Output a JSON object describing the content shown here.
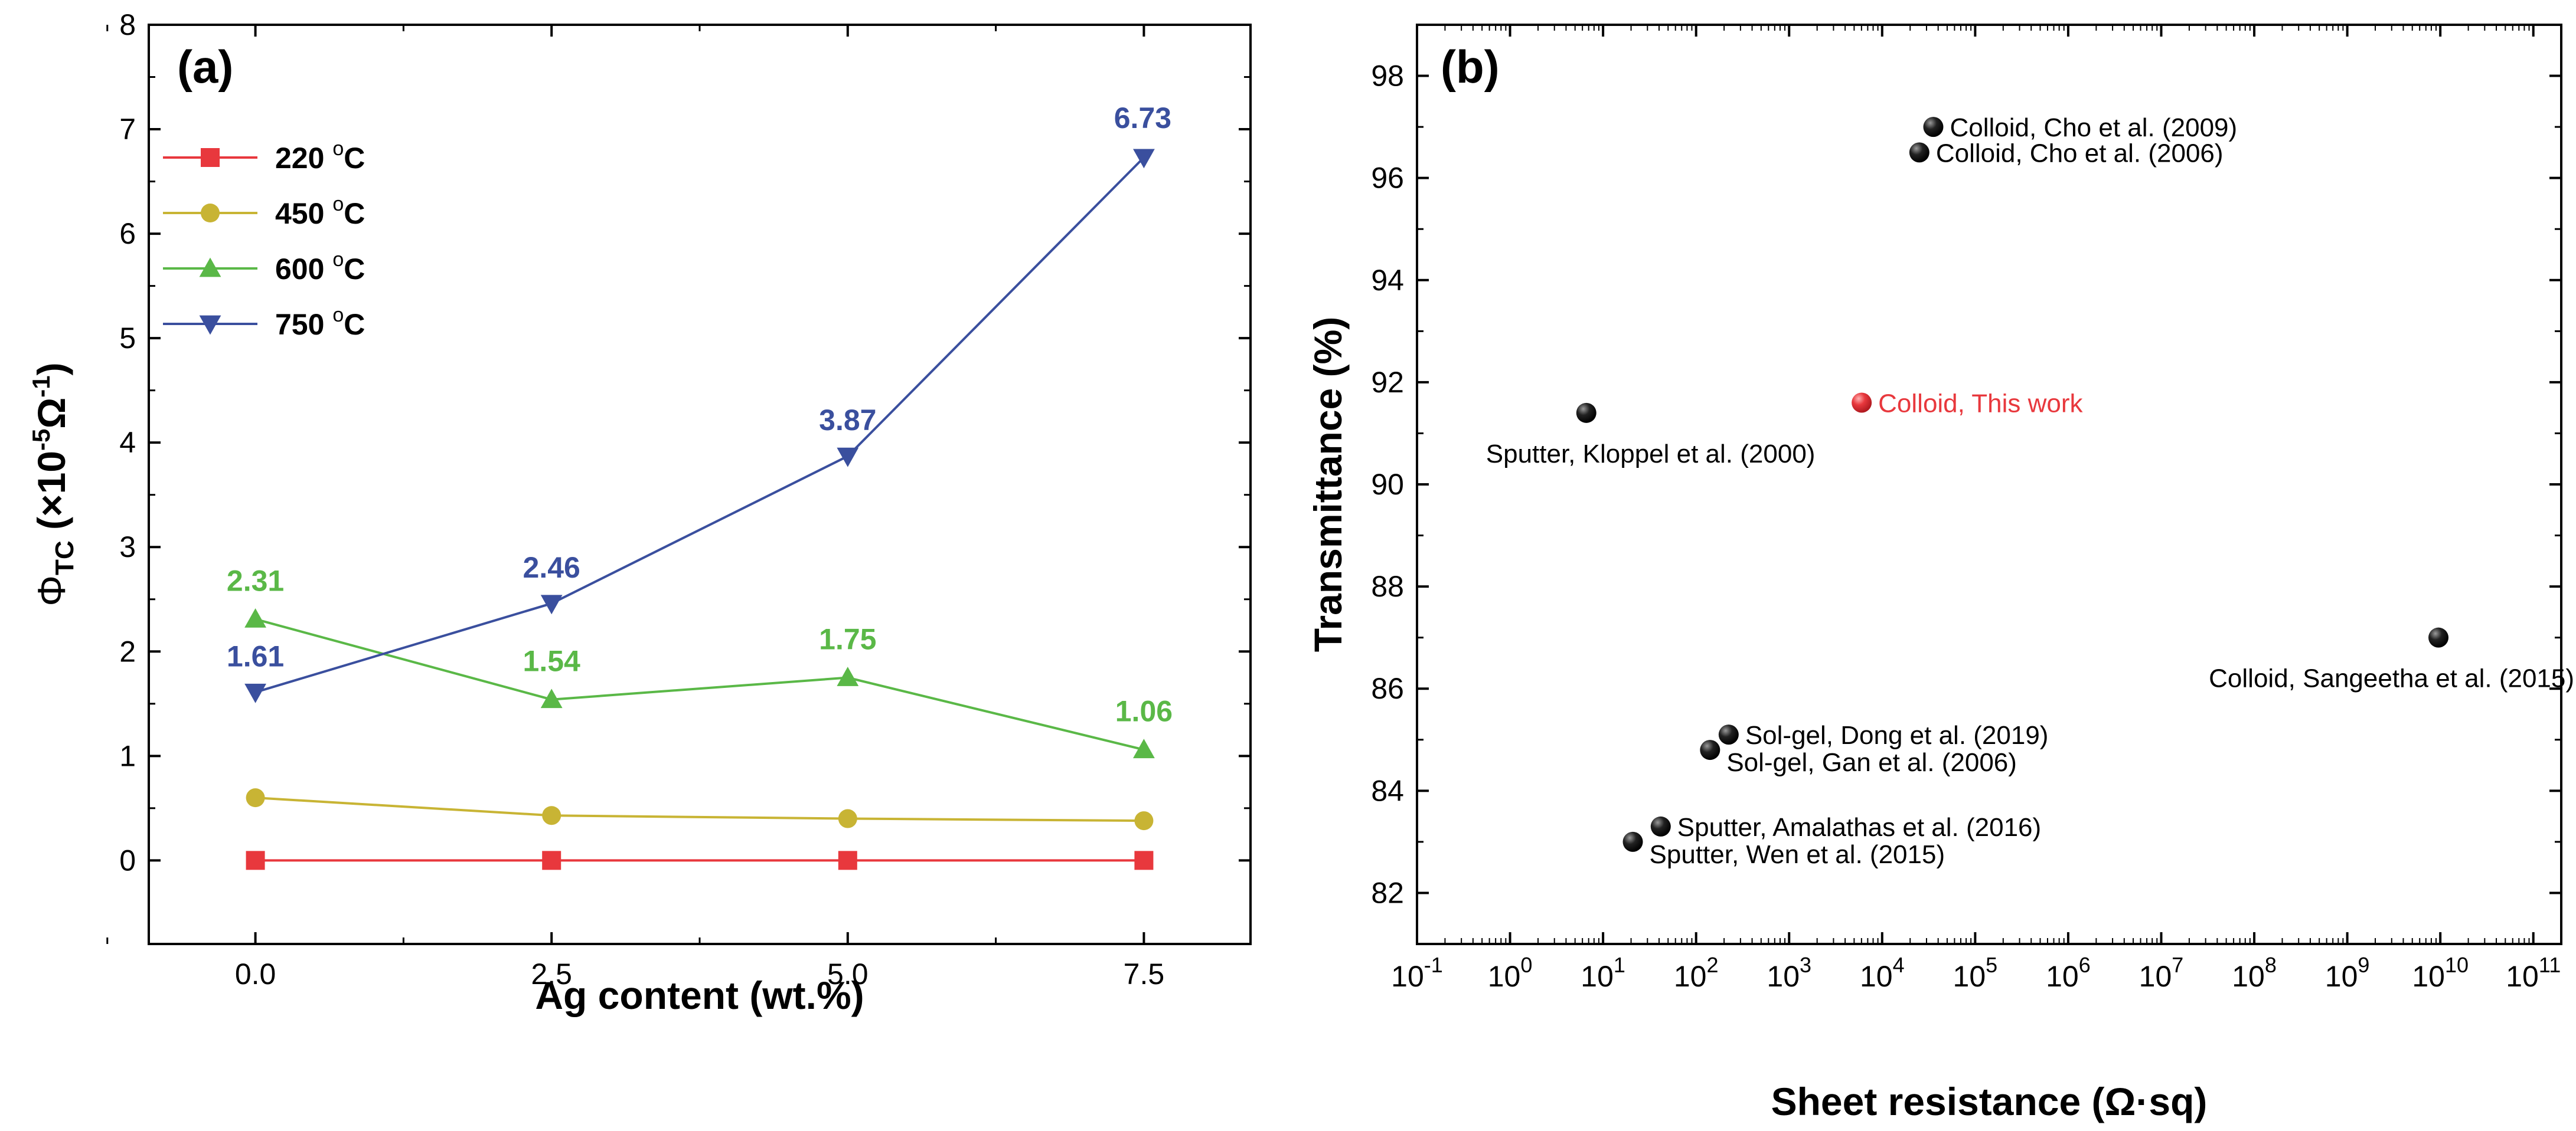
{
  "chart_data": [
    {
      "panel": "(a)",
      "type": "line",
      "xlabel": "Ag content (wt.%)",
      "ylabel_main": "Φ",
      "ylabel_sub": "TC",
      "ylabel_rest": " (×10",
      "ylabel_exp1": "-5",
      "ylabel_unit": "Ω",
      "ylabel_exp2": "-1",
      "ylabel_close": ")",
      "xlim": [
        -0.9,
        8.4
      ],
      "ylim": [
        -0.8,
        8
      ],
      "xticks": [
        0,
        2.5,
        5,
        7.5
      ],
      "xtick_labels": [
        "0.0",
        "2.5",
        "5.0",
        "7.5"
      ],
      "yticks": [
        0,
        1,
        2,
        3,
        4,
        5,
        6,
        7,
        8
      ],
      "ytick_labels": [
        "0",
        "1",
        "2",
        "3",
        "4",
        "5",
        "6",
        "7",
        "8"
      ],
      "x": [
        0,
        2.5,
        5,
        7.5
      ],
      "series": [
        {
          "name": "220 °C",
          "temp": "220",
          "deg": "o",
          "unit": "C",
          "marker": "square",
          "color": "#e8383d",
          "values": [
            0.0,
            0.0,
            0.0,
            0.0
          ],
          "labels": null
        },
        {
          "name": "450 °C",
          "temp": "450",
          "deg": "o",
          "unit": "C",
          "marker": "circle",
          "color": "#c8b434",
          "values": [
            0.6,
            0.43,
            0.4,
            0.38
          ],
          "labels": null
        },
        {
          "name": "600 °C",
          "temp": "600",
          "deg": "o",
          "unit": "C",
          "marker": "triangle-up",
          "color": "#5ab847",
          "values": [
            2.31,
            1.54,
            1.75,
            1.06
          ],
          "labels": [
            "2.31",
            "1.54",
            "1.75",
            "1.06"
          ]
        },
        {
          "name": "750 °C",
          "temp": "750",
          "deg": "o",
          "unit": "C",
          "marker": "triangle-down",
          "color": "#3a4f9e",
          "values": [
            1.61,
            2.46,
            3.87,
            6.73
          ],
          "labels": [
            "1.61",
            "2.46",
            "3.87",
            "6.73"
          ]
        }
      ]
    },
    {
      "panel": "(b)",
      "type": "scatter",
      "xscale": "log",
      "xlabel": "Sheet resistance (Ω·sq)",
      "ylabel": "Transmittance (%)",
      "xlim_log10": [
        -1,
        11.3
      ],
      "ylim": [
        81,
        99
      ],
      "xtick_exponents": [
        -1,
        0,
        1,
        2,
        3,
        4,
        5,
        6,
        7,
        8,
        9,
        10,
        11
      ],
      "xtick_base": "10",
      "yticks": [
        82,
        84,
        86,
        88,
        90,
        92,
        94,
        96,
        98
      ],
      "ytick_labels": [
        "82",
        "84",
        "86",
        "88",
        "90",
        "92",
        "94",
        "96",
        "98"
      ],
      "points": [
        {
          "label": "Colloid, Cho et al. (2009)",
          "x_log10": 4.55,
          "y": 97.0,
          "color": "#111111",
          "label_side": "right"
        },
        {
          "label": "Colloid, Cho et al. (2006)",
          "x_log10": 4.4,
          "y": 96.5,
          "color": "#111111",
          "label_side": "right"
        },
        {
          "label": "Sputter, Kloppel et al. (2000)",
          "x_log10": 0.82,
          "y": 91.4,
          "color": "#111111",
          "label_side": "below-right"
        },
        {
          "label": "Colloid, This work",
          "x_log10": 3.78,
          "y": 91.6,
          "color": "#e8383d",
          "label_side": "right"
        },
        {
          "label": "Colloid, Sangeetha et al. (2015)",
          "x_log10": 9.98,
          "y": 87.0,
          "color": "#111111",
          "label_side": "below-left"
        },
        {
          "label": "Sol-gel, Dong et al. (2019)",
          "x_log10": 2.35,
          "y": 85.1,
          "color": "#111111",
          "label_side": "right"
        },
        {
          "label": "Sol-gel, Gan et al. (2006)",
          "x_log10": 2.15,
          "y": 84.8,
          "color": "#111111",
          "label_side": "right-below"
        },
        {
          "label": "Sputter, Amalathas et al. (2016)",
          "x_log10": 1.62,
          "y": 83.3,
          "color": "#111111",
          "label_side": "right"
        },
        {
          "label": "Sputter, Wen et al. (2015)",
          "x_log10": 1.32,
          "y": 83.0,
          "color": "#111111",
          "label_side": "right-below"
        }
      ]
    }
  ]
}
